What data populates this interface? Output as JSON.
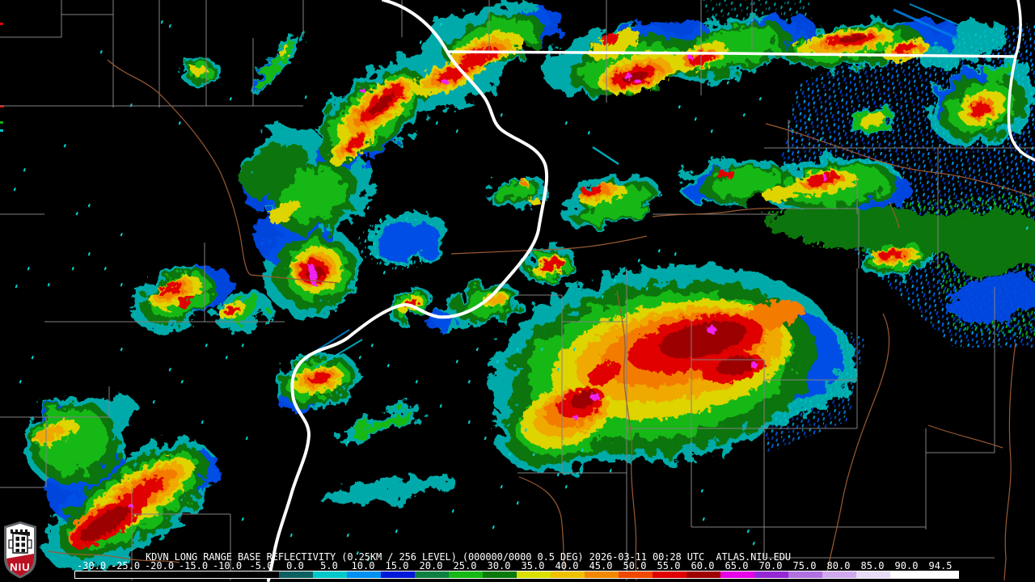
{
  "status_bar": {
    "product_line": "KDVN LONG RANGE BASE REFLECTIVITY (0.25KM / 256 LEVEL) (000000/0000 0.5 DEG) 2026-03-11 00:28 UTC  ATLAS.NIU.EDU",
    "radar_site": "KDVN",
    "timestamp": "2026-03-11 00:28 UTC",
    "source": "ATLAS.NIU.EDU"
  },
  "color_scale": {
    "tick_labels": [
      "-30.0",
      "-25.0",
      "-20.0",
      "-15.0",
      "-10.0",
      "-5.0",
      "0.0",
      "5.0",
      "10.0",
      "15.0",
      "20.0",
      "25.0",
      "30.0",
      "35.0",
      "40.0",
      "45.0",
      "50.0",
      "55.0",
      "60.0",
      "65.0",
      "70.0",
      "75.0",
      "80.0",
      "85.0",
      "90.0",
      "94.5"
    ],
    "segment_colors": [
      "#000000",
      "#000000",
      "#000000",
      "#000000",
      "#000000",
      "#000000",
      "#0e6060",
      "#00c8c8",
      "#0090f0",
      "#0018d8",
      "#0c8040",
      "#15b815",
      "#0a7a0a",
      "#d8e000",
      "#eec000",
      "#f28800",
      "#f04800",
      "#e00000",
      "#9e0000",
      "#e800e8",
      "#9428d4",
      "#b070e0",
      "#cfa8ee",
      "#e8dcf6",
      "#ffffff",
      "#ffffff"
    ]
  },
  "logo": {
    "text": "NIU",
    "shield_red": "#ba1222"
  },
  "map": {
    "background": "#000000",
    "state_border_color": "#ffffff",
    "county_border_color": "#828282",
    "river_road_color": "#9b5a33",
    "echo_palette": {
      "cyan": "#00c9c9",
      "blue": "#0448e8",
      "dark_green": "#077407",
      "green": "#14b814",
      "yellow": "#ddd400",
      "gold": "#efa900",
      "orange": "#f37b00",
      "red": "#e00000",
      "dark_red": "#9c0000",
      "magenta": "#f020f0"
    }
  }
}
